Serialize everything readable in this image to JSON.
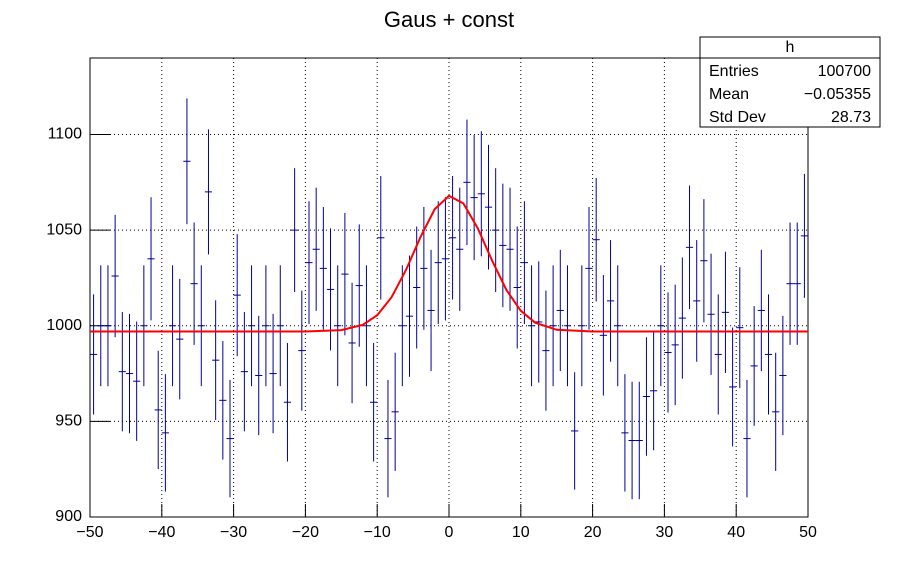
{
  "chart_data": {
    "type": "errorbar-histogram",
    "title": "Gaus + const",
    "bins": [
      -50,
      -49,
      -48,
      -47,
      -46,
      -45,
      -44,
      -43,
      -42,
      -41,
      -40,
      -39,
      -38,
      -37,
      -36,
      -35,
      -34,
      -33,
      -32,
      -31,
      -30,
      -29,
      -28,
      -27,
      -26,
      -25,
      -24,
      -23,
      -22,
      -21,
      -20,
      -19,
      -18,
      -17,
      -16,
      -15,
      -14,
      -13,
      -12,
      -11,
      -10,
      -9,
      -8,
      -7,
      -6,
      -5,
      -4,
      -3,
      -2,
      -1,
      0,
      1,
      2,
      3,
      4,
      5,
      6,
      7,
      8,
      9,
      10,
      11,
      12,
      13,
      14,
      15,
      16,
      17,
      18,
      19,
      20,
      21,
      22,
      23,
      24,
      25,
      26,
      27,
      28,
      29,
      30,
      31,
      32,
      33,
      34,
      35,
      36,
      37,
      38,
      39,
      40,
      41,
      42,
      43,
      44,
      45,
      46,
      47,
      48,
      49,
      50
    ],
    "values": [
      985,
      1000,
      1000,
      1026,
      976,
      975,
      971,
      1000,
      1035,
      956,
      944,
      1000,
      993,
      1086,
      1022,
      1000,
      1070,
      982,
      961,
      941,
      1016,
      976,
      1000,
      974,
      1000,
      975,
      1000,
      960,
      1050,
      987,
      1033,
      1040,
      1030,
      1019,
      1000,
      1027,
      991,
      1021,
      1000,
      960,
      1046,
      941,
      955,
      1000,
      1005,
      1020,
      1030,
      1008,
      1033,
      1035,
      1046,
      1040,
      1075,
      1067,
      1069,
      1062,
      1050,
      1042,
      1040,
      1020,
      1033,
      1000,
      1002,
      987,
      1000,
      1008,
      1000,
      945,
      1000,
      1030,
      1045,
      995,
      1013,
      1000,
      944,
      940,
      940,
      963,
      966,
      1000,
      986,
      990,
      1004,
      1041,
      1013,
      1034,
      1006,
      985,
      1007,
      968,
      999,
      941,
      979,
      1008,
      985,
      955,
      974,
      1022,
      1022,
      1047
    ],
    "errors": [
      31.4,
      31.6,
      31.6,
      32.0,
      31.2,
      31.2,
      31.2,
      31.6,
      32.2,
      30.9,
      30.7,
      31.6,
      31.5,
      32.9,
      32.0,
      31.6,
      32.7,
      31.3,
      31.0,
      30.7,
      31.9,
      31.2,
      31.6,
      31.2,
      31.6,
      31.2,
      31.6,
      31.0,
      32.4,
      31.4,
      32.1,
      32.2,
      32.1,
      31.9,
      31.6,
      32.0,
      31.5,
      32.0,
      31.6,
      31.0,
      32.3,
      30.7,
      30.9,
      31.6,
      31.7,
      31.9,
      32.1,
      31.7,
      32.1,
      32.2,
      32.3,
      32.2,
      32.8,
      32.7,
      32.7,
      32.6,
      32.4,
      32.3,
      32.2,
      31.9,
      32.1,
      31.6,
      31.7,
      31.4,
      31.6,
      31.7,
      31.6,
      30.7,
      31.6,
      32.1,
      32.3,
      31.5,
      31.8,
      31.6,
      30.7,
      30.7,
      30.7,
      31.0,
      31.1,
      31.6,
      31.4,
      31.5,
      31.7,
      32.3,
      31.8,
      32.2,
      31.7,
      31.4,
      31.7,
      31.1,
      31.6,
      30.7,
      31.3,
      31.7,
      31.4,
      30.9,
      31.2,
      32.0,
      32.0,
      32.4
    ],
    "color": "#000099",
    "fit": {
      "color": "#ff0000",
      "x": [
        -50,
        -20,
        -15,
        -12,
        -10,
        -8,
        -6,
        -4,
        -2,
        0,
        2,
        4,
        6,
        8,
        10,
        12,
        15,
        20,
        50
      ],
      "values": [
        997.0,
        997.0,
        997.7,
        1000.5,
        1005.5,
        1014.9,
        1029.1,
        1046.1,
        1060.9,
        1067.9,
        1064.0,
        1051.0,
        1034.1,
        1018.7,
        1007.8,
        1001.6,
        997.9,
        997.0,
        997.0
      ]
    },
    "xlim": [
      -50,
      50
    ],
    "xticks": [
      {
        "value": -50,
        "label": "−50"
      },
      {
        "value": -40,
        "label": "−40"
      },
      {
        "value": -30,
        "label": "−30"
      },
      {
        "value": -20,
        "label": "−20"
      },
      {
        "value": -10,
        "label": "−10"
      },
      0,
      10,
      20,
      30,
      40,
      50
    ],
    "ylim": [
      900,
      1140
    ],
    "yticks": [
      900,
      950,
      1000,
      1050,
      1100
    ],
    "grid": true,
    "stats": {
      "name": "h",
      "rows": [
        [
          "Entries",
          "100700"
        ],
        [
          "Mean",
          "−0.05355"
        ],
        [
          "Std Dev",
          "28.73"
        ]
      ]
    }
  }
}
